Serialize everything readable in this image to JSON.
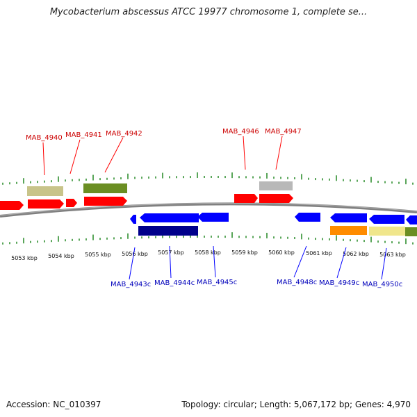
{
  "title": "Mycobacterium abscessus ATCC 19977 chromosome 1, complete se...",
  "footer": {
    "accession": "Accession: NC_010397",
    "summary": "Topology: circular; Length: 5,067,172 bp; Genes: 4,970"
  },
  "colors": {
    "forward": "#ff0000",
    "reverse": "#0000ff",
    "backbone": "#808080",
    "ticks": "#228822",
    "label_forward": "#cc0000",
    "label_reverse": "#0000bb"
  },
  "ticks": [
    {
      "label": "5053 kbp"
    },
    {
      "label": "5054 kbp"
    },
    {
      "label": "5055 kbp"
    },
    {
      "label": "5056 kbp"
    },
    {
      "label": "5057 kbp"
    },
    {
      "label": "5058 kbp"
    },
    {
      "label": "5059 kbp"
    },
    {
      "label": "5060 kbp"
    },
    {
      "label": "5061 kbp"
    },
    {
      "label": "5062 kbp"
    },
    {
      "label": "5063 kbp"
    }
  ],
  "forward_genes": [
    {
      "label": "MAB_4940"
    },
    {
      "label": "MAB_4941"
    },
    {
      "label": "MAB_4942"
    },
    {
      "label": "MAB_4946"
    },
    {
      "label": "MAB_4947"
    }
  ],
  "reverse_genes": [
    {
      "label": "MAB_4943c"
    },
    {
      "label": "MAB_4944c"
    },
    {
      "label": "MAB_4945c"
    },
    {
      "label": "MAB_4948c"
    },
    {
      "label": "MAB_4949c"
    },
    {
      "label": "MAB_4950c"
    }
  ]
}
